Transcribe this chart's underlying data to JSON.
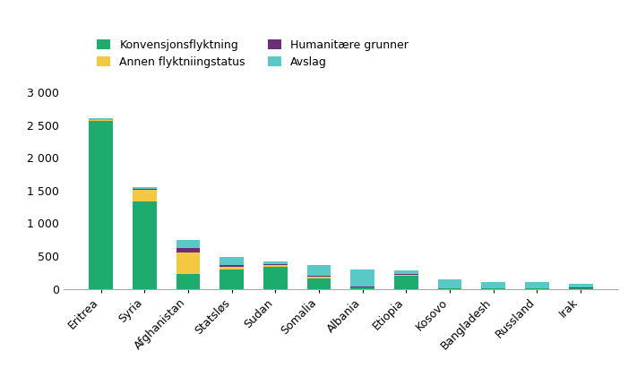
{
  "countries": [
    "Eritrea",
    "Syria",
    "Afghanistan",
    "Statsløs",
    "Sudan",
    "Somalia",
    "Albania",
    "Etiopia",
    "Kosovo",
    "Bangladesh",
    "Russland",
    "Irak"
  ],
  "konvensjonsflyktning": [
    2570,
    1340,
    220,
    300,
    340,
    160,
    15,
    200,
    5,
    5,
    5,
    10
  ],
  "annen_flyktningstatus": [
    10,
    170,
    340,
    40,
    20,
    20,
    10,
    10,
    3,
    3,
    3,
    3
  ],
  "humanitaere_grunner": [
    5,
    15,
    60,
    20,
    10,
    20,
    15,
    15,
    3,
    3,
    3,
    3
  ],
  "avslag": [
    25,
    25,
    120,
    130,
    50,
    165,
    260,
    50,
    130,
    85,
    90,
    65
  ],
  "colors": {
    "konvensjonsflyktning": "#1dab6e",
    "annen_flyktningstatus": "#f5c842",
    "humanitaere_grunner": "#6b2f7a",
    "avslag": "#5bc8c8"
  },
  "ylim": [
    0,
    3000
  ],
  "yticks": [
    0,
    500,
    1000,
    1500,
    2000,
    2500,
    3000
  ],
  "figsize": [
    7.11,
    4.3
  ],
  "dpi": 100
}
